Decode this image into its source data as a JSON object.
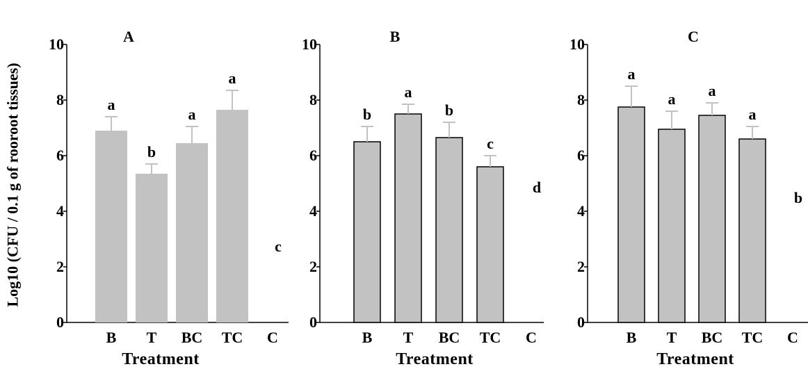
{
  "figure": {
    "ylabel": "Log10 (CFU / 0.1 g of rooroot tissues)"
  },
  "colors": {
    "bar_fill": "#c2c2c2",
    "bar_edge": "#000000",
    "axis": "#000000"
  },
  "chart_data": [
    {
      "type": "bar",
      "title": "A",
      "xlabel": "Treatment",
      "ylabel": "Log10 (CFU / 0.1 g of rooroot tissues)",
      "ylim": [
        0,
        10
      ],
      "yticks": [
        "0",
        "2",
        "4",
        "6",
        "8",
        "10"
      ],
      "categories": [
        "B",
        "T",
        "BC",
        "TC",
        "C"
      ],
      "values": [
        6.9,
        5.35,
        6.45,
        7.65,
        0
      ],
      "errors": [
        0.5,
        0.35,
        0.6,
        0.7,
        0
      ],
      "letters": [
        "a",
        "b",
        "a",
        "a",
        "c"
      ],
      "bar_edges": "none",
      "grid": false
    },
    {
      "type": "bar",
      "title": "B",
      "xlabel": "Treatment",
      "ylabel": "",
      "ylim": [
        0,
        10
      ],
      "yticks": [
        "0",
        "2",
        "4",
        "6",
        "8",
        "10"
      ],
      "categories": [
        "B",
        "T",
        "BC",
        "TC",
        "C"
      ],
      "values": [
        6.5,
        7.5,
        6.65,
        5.6,
        0
      ],
      "errors": [
        0.55,
        0.35,
        0.55,
        0.4,
        0
      ],
      "letters": [
        "b",
        "a",
        "b",
        "c",
        "d"
      ],
      "bar_edges": "outlined",
      "grid": false
    },
    {
      "type": "bar",
      "title": "C",
      "xlabel": "Treatment",
      "ylabel": "",
      "ylim": [
        0,
        10
      ],
      "yticks": [
        "0",
        "2",
        "4",
        "6",
        "8",
        "10"
      ],
      "categories": [
        "B",
        "T",
        "BC",
        "TC",
        "C"
      ],
      "values": [
        7.75,
        6.95,
        7.45,
        6.6,
        0
      ],
      "errors": [
        0.75,
        0.65,
        0.45,
        0.45,
        0
      ],
      "letters": [
        "a",
        "a",
        "a",
        "a",
        "b"
      ],
      "bar_edges": "outlined",
      "grid": false
    }
  ]
}
